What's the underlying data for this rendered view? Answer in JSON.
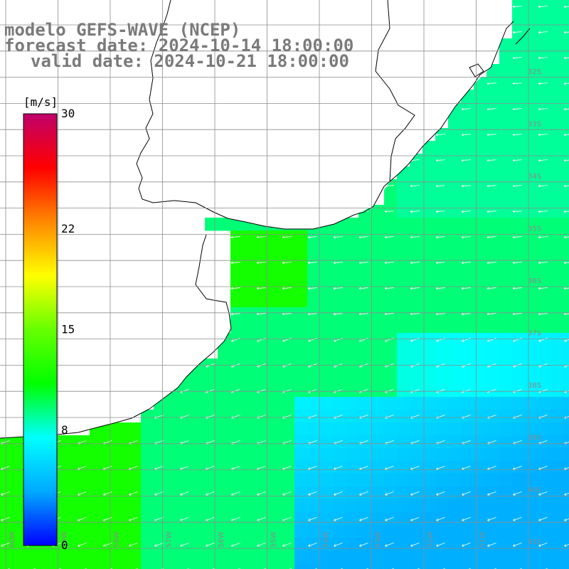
{
  "title": {
    "line1": "modelo GEFS-WAVE (NCEP)",
    "line2": "forecast date: 2024-10-14 18:00:00",
    "line3": "valid date: 2024-10-21 18:00:00"
  },
  "colorbar": {
    "unit": "[m/s]",
    "min": 0,
    "max": 30,
    "tick_labels": [
      "30",
      "22",
      "15",
      "8",
      "0"
    ],
    "tick_values": [
      30,
      22,
      15,
      8,
      0
    ],
    "colors": [
      "#0000ff",
      "#00aaff",
      "#00ffff",
      "#00ff00",
      "#66ff00",
      "#ffff00",
      "#ff8800",
      "#ff0000",
      "#c0006a"
    ]
  },
  "map": {
    "lat_labels": [
      "32S",
      "33S",
      "34S",
      "35S",
      "36S",
      "37S",
      "38S",
      "39S",
      "40S",
      "41S"
    ],
    "lon_labels": [
      "60W",
      "59W",
      "58W",
      "57W",
      "56W",
      "55W",
      "54W",
      "53W",
      "52W",
      "51W"
    ],
    "land_color": "#ffffff",
    "coast_color": "#000000",
    "grid_color": "#8c8c8c",
    "arrow_color": "#ffffff"
  }
}
